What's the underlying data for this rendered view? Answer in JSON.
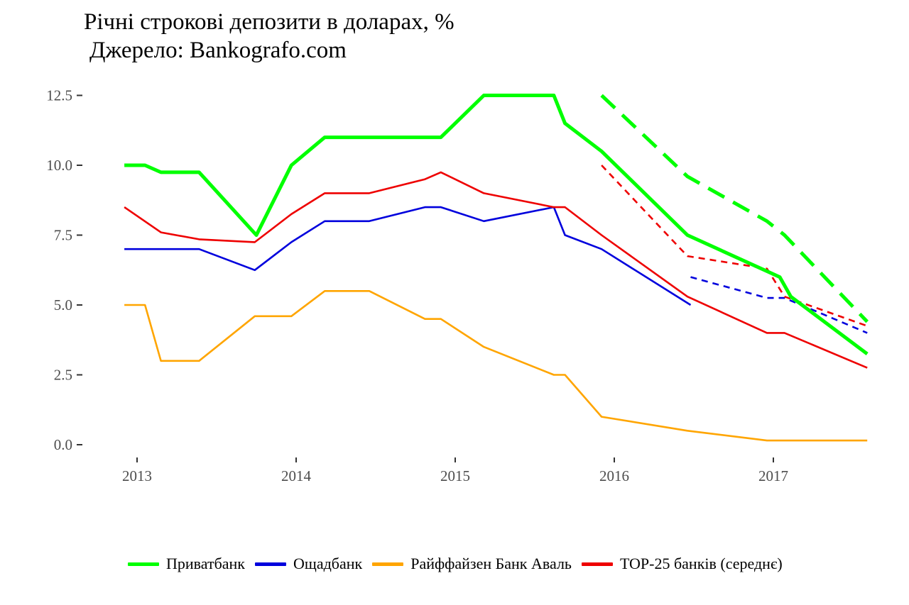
{
  "title": "Річні строкові депозити в доларах, %",
  "subtitle": "Джерело: Bankografo.com",
  "chart_data": {
    "type": "line",
    "ylim": [
      0,
      12.5
    ],
    "xlim": [
      2012.9,
      2017.6
    ],
    "y_ticks": [
      0,
      2.5,
      5,
      7.5,
      10,
      12.5
    ],
    "y_tick_labels": [
      "0.0",
      "2.5",
      "5.0",
      "7.5",
      "10.0",
      "12.5"
    ],
    "x_ticks": [
      2013,
      2014,
      2015,
      2016,
      2017
    ],
    "x_tick_labels": [
      "2013",
      "2014",
      "2015",
      "2016",
      "2017"
    ],
    "grid": false,
    "legend_position": "bottom",
    "series": [
      {
        "name": "Приватбанк",
        "color": "#00ff00",
        "style": "solid",
        "points": [
          [
            2012.92,
            10
          ],
          [
            2013.05,
            10
          ],
          [
            2013.15,
            9.75
          ],
          [
            2013.39,
            9.75
          ],
          [
            2013.75,
            7.5
          ],
          [
            2013.97,
            10
          ],
          [
            2014.18,
            11
          ],
          [
            2014.91,
            11
          ],
          [
            2015.18,
            12.5
          ],
          [
            2015.62,
            12.5
          ],
          [
            2015.69,
            11.5
          ],
          [
            2015.92,
            10.5
          ],
          [
            2016.46,
            7.5
          ],
          [
            2017.04,
            6
          ],
          [
            2017.11,
            5.3
          ],
          [
            2017.59,
            3.25
          ]
        ]
      },
      {
        "name": "Приватбанк",
        "color": "#00ff00",
        "style": "dashed",
        "points": [
          [
            2015.92,
            12.5
          ],
          [
            2016.46,
            9.6
          ],
          [
            2016.96,
            8
          ],
          [
            2017.07,
            7.5
          ],
          [
            2017.59,
            4.4
          ]
        ]
      },
      {
        "name": "Ощадбанк",
        "color": "#0000dd",
        "style": "solid",
        "points": [
          [
            2012.92,
            7
          ],
          [
            2013.39,
            7
          ],
          [
            2013.74,
            6.25
          ],
          [
            2013.97,
            7.25
          ],
          [
            2014.18,
            8
          ],
          [
            2014.46,
            8
          ],
          [
            2014.81,
            8.5
          ],
          [
            2014.91,
            8.5
          ],
          [
            2015.18,
            8
          ],
          [
            2015.62,
            8.5
          ],
          [
            2015.69,
            7.5
          ],
          [
            2015.92,
            7
          ],
          [
            2016.48,
            5
          ]
        ]
      },
      {
        "name": "Ощадбанк",
        "color": "#0000dd",
        "style": "dashed",
        "points": [
          [
            2016.48,
            6
          ],
          [
            2016.96,
            5.25
          ],
          [
            2017.07,
            5.25
          ],
          [
            2017.59,
            4
          ]
        ]
      },
      {
        "name": "Райффайзен Банк Аваль",
        "color": "#ffa500",
        "style": "solid",
        "points": [
          [
            2012.92,
            5
          ],
          [
            2013.05,
            5
          ],
          [
            2013.15,
            3
          ],
          [
            2013.39,
            3
          ],
          [
            2013.74,
            4.6
          ],
          [
            2013.97,
            4.6
          ],
          [
            2014.18,
            5.5
          ],
          [
            2014.46,
            5.5
          ],
          [
            2014.81,
            4.5
          ],
          [
            2014.91,
            4.5
          ],
          [
            2015.18,
            3.5
          ],
          [
            2015.62,
            2.5
          ],
          [
            2015.69,
            2.5
          ],
          [
            2015.92,
            1
          ],
          [
            2016.46,
            0.5
          ],
          [
            2016.96,
            0.15
          ],
          [
            2017.07,
            0.15
          ],
          [
            2017.59,
            0.15
          ]
        ]
      },
      {
        "name": "TOP-25 банків (середнє)",
        "color": "#ee0000",
        "style": "solid",
        "points": [
          [
            2012.92,
            8.5
          ],
          [
            2013.15,
            7.6
          ],
          [
            2013.39,
            7.35
          ],
          [
            2013.74,
            7.25
          ],
          [
            2013.97,
            8.25
          ],
          [
            2014.18,
            9
          ],
          [
            2014.46,
            9
          ],
          [
            2014.81,
            9.5
          ],
          [
            2014.91,
            9.75
          ],
          [
            2015.18,
            9
          ],
          [
            2015.62,
            8.5
          ],
          [
            2015.69,
            8.5
          ],
          [
            2015.92,
            7.5
          ],
          [
            2016.46,
            5.3
          ],
          [
            2016.96,
            4
          ],
          [
            2017.07,
            4
          ],
          [
            2017.59,
            2.75
          ]
        ]
      },
      {
        "name": "TOP-25 банків (середнє)",
        "color": "#ee0000",
        "style": "dashed",
        "points": [
          [
            2015.92,
            10
          ],
          [
            2016.46,
            6.75
          ],
          [
            2016.96,
            6.3
          ],
          [
            2017.07,
            5.3
          ],
          [
            2017.59,
            4.25
          ]
        ]
      }
    ],
    "legend": [
      {
        "label": "Приватбанк",
        "color": "#00ff00"
      },
      {
        "label": "Ощадбанк",
        "color": "#0000dd"
      },
      {
        "label": "Райффайзен Банк Аваль",
        "color": "#ffa500"
      },
      {
        "label": "TOP-25 банків (середнє)",
        "color": "#ee0000"
      }
    ]
  }
}
